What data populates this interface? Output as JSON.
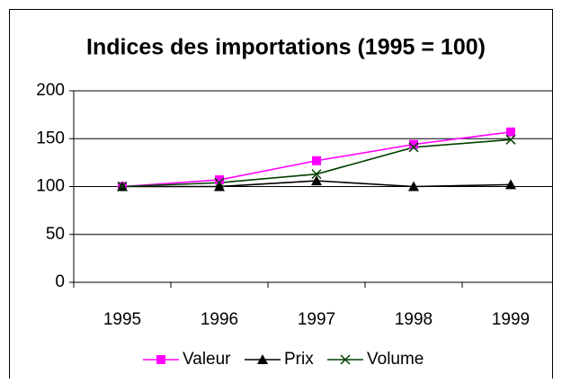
{
  "chart_data": {
    "type": "line",
    "title": "Indices des importations (1995 = 100)",
    "categories": [
      "1995",
      "1996",
      "1997",
      "1998",
      "1999"
    ],
    "series": [
      {
        "name": "Valeur",
        "color": "#ff00ff",
        "marker": "square",
        "values": [
          100,
          107,
          127,
          144,
          157
        ]
      },
      {
        "name": "Prix",
        "color": "#000000",
        "marker": "triangle",
        "values": [
          100,
          100,
          106,
          100,
          102
        ]
      },
      {
        "name": "Volume",
        "color": "#004000",
        "marker": "x",
        "values": [
          100,
          104,
          113,
          141,
          149
        ]
      }
    ],
    "ylim": [
      0,
      200
    ],
    "yticks": [
      0,
      50,
      100,
      150,
      200
    ],
    "grid": true,
    "legend": "bottom"
  }
}
